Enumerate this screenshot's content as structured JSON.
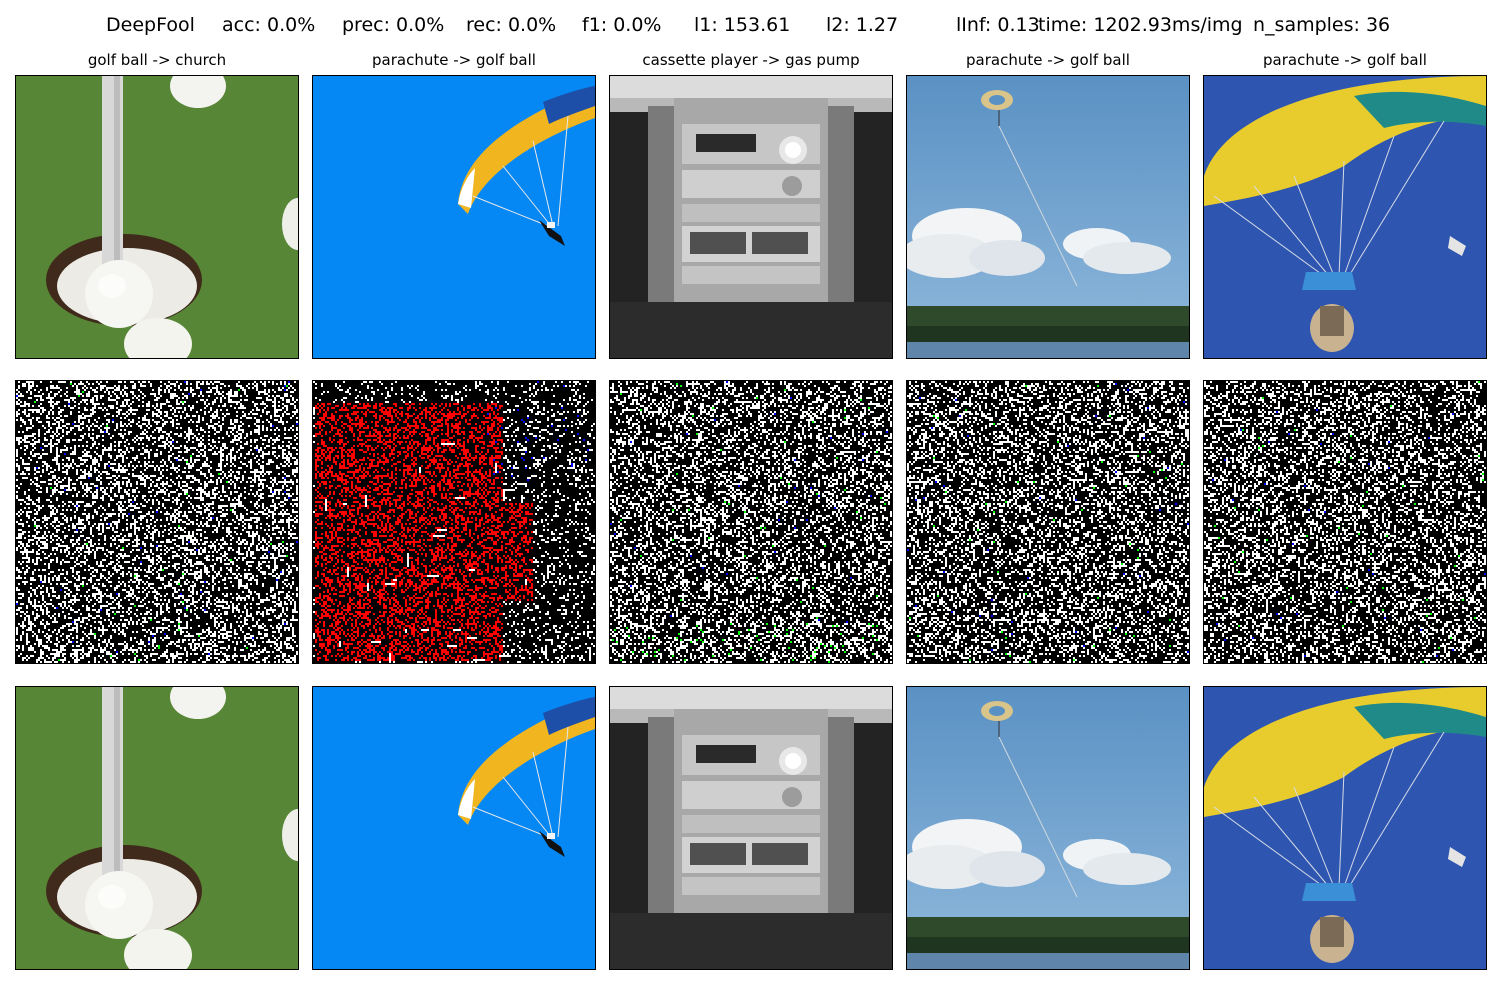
{
  "header": {
    "method": "DeepFool",
    "metrics": [
      "acc: 0.0%",
      "prec: 0.0%",
      "rec: 0.0%",
      "f1: 0.0%",
      "l1: 153.61",
      "l2: 1.27",
      "lInf: 0.13",
      "time: 1202.93ms/img",
      "n_samples: 36"
    ]
  },
  "columns": [
    {
      "title": "golf ball -> church",
      "scene": "golf-hole-with-balls"
    },
    {
      "title": "parachute -> golf ball",
      "scene": "paraglider-blue-sky"
    },
    {
      "title": "cassette player -> gas pump",
      "scene": "boombox-stereo"
    },
    {
      "title": "parachute -> golf ball",
      "scene": "parasail-over-beach"
    },
    {
      "title": "parachute -> golf ball",
      "scene": "tandem-skydiver-yellow-canopy"
    }
  ],
  "rows": [
    "original-image",
    "perturbation",
    "adversarial-image"
  ],
  "perturbation_colors": {
    "background": "#000000",
    "primary": "#ffffff",
    "red": "#ff0000",
    "green": "#00ff00",
    "blue": "#0000ff"
  }
}
